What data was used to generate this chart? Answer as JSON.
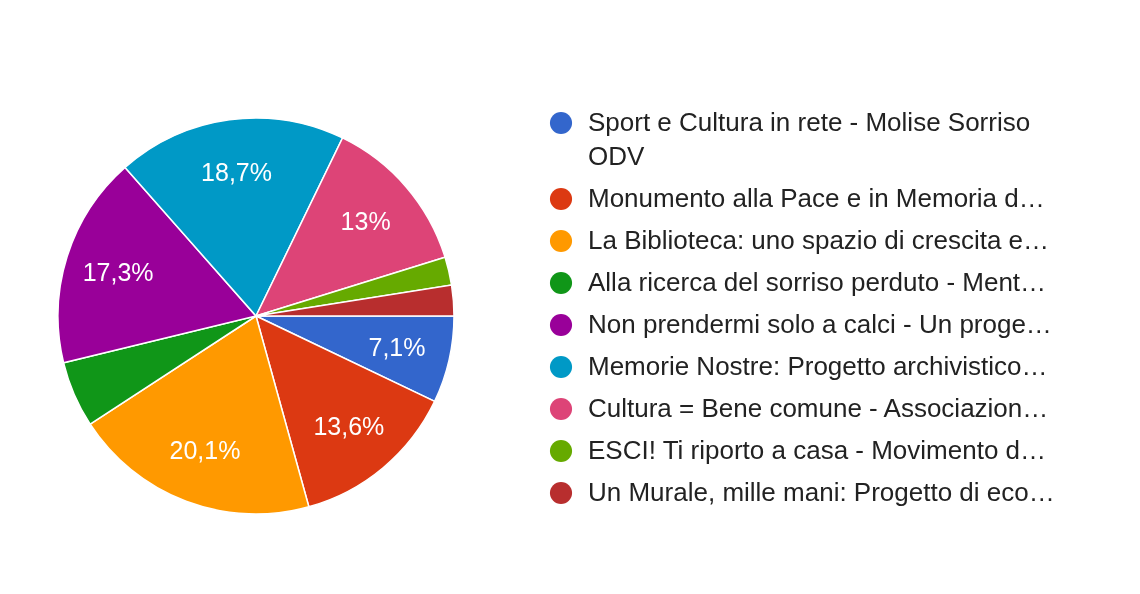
{
  "chart_data": {
    "type": "pie",
    "categories": [
      "Sport e Cultura in rete - Molise Sorriso ODV",
      "Monumento alla Pace e in Memoria d…",
      "La Biblioteca: uno spazio di crescita e…",
      "Alla ricerca del sorriso perduto - Ment…",
      "Non prendermi solo a calci - Un proge…",
      "Memorie Nostre: Progetto archivistico…",
      "Cultura = Bene comune - Associazion…",
      "ESCI! Ti riporto a casa - Movimento d…",
      "Un Murale, mille mani: Progetto di eco…"
    ],
    "values": [
      7.1,
      13.6,
      20.1,
      5.4,
      17.3,
      18.7,
      13,
      2.3,
      2.5
    ],
    "colors": [
      "#3366cc",
      "#dc3912",
      "#ff9900",
      "#109618",
      "#990099",
      "#0099c6",
      "#dd4477",
      "#66aa00",
      "#b82e2e"
    ],
    "value_labels": [
      "7,1%",
      "13,6%",
      "20,1%",
      null,
      "17,3%",
      "18,7%",
      "13%",
      null,
      null
    ],
    "legend": "right"
  }
}
